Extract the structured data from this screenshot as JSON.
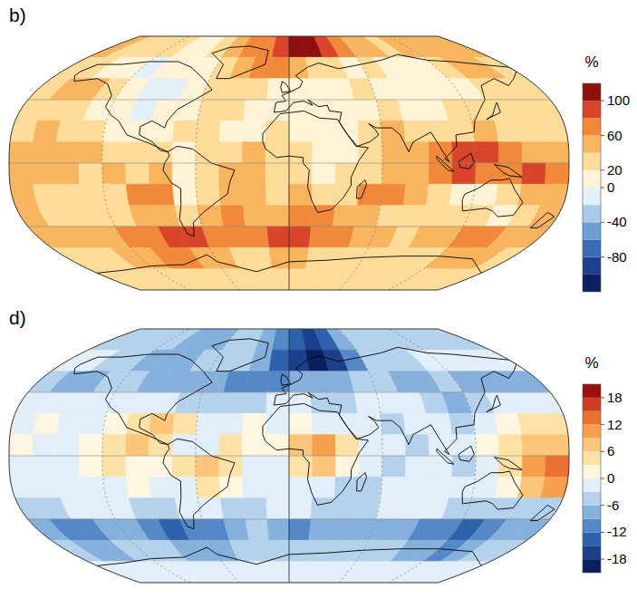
{
  "chart_data": [
    {
      "type": "heatmap",
      "title": "b)",
      "tick_labels": false,
      "grid": true,
      "xlim": [
        -180,
        180
      ],
      "ylim": [
        -90,
        90
      ],
      "xticks": [
        -120,
        -60,
        0,
        60,
        120
      ],
      "yticks": [
        -45,
        0,
        45
      ],
      "x": [
        -172.5,
        -157.5,
        -142.5,
        -127.5,
        -112.5,
        -97.5,
        -82.5,
        -67.5,
        -52.5,
        -37.5,
        -22.5,
        -7.5,
        7.5,
        22.5,
        37.5,
        52.5,
        67.5,
        82.5,
        97.5,
        112.5,
        127.5,
        142.5,
        157.5,
        172.5
      ],
      "y": [
        82.5,
        67.5,
        52.5,
        37.5,
        22.5,
        7.5,
        -7.5,
        -22.5,
        -37.5,
        -52.5,
        -67.5,
        -82.5
      ],
      "values": [
        [
          40,
          30,
          30,
          20,
          20,
          10,
          10,
          20,
          40,
          60,
          60,
          80,
          100,
          100,
          80,
          60,
          40,
          40,
          30,
          40,
          40,
          40,
          40,
          40
        ],
        [
          30,
          20,
          10,
          0,
          -10,
          0,
          10,
          0,
          20,
          40,
          60,
          60,
          40,
          20,
          20,
          10,
          20,
          10,
          10,
          0,
          20,
          40,
          40,
          30
        ],
        [
          30,
          40,
          40,
          20,
          0,
          -10,
          -10,
          0,
          20,
          30,
          20,
          10,
          0,
          10,
          10,
          20,
          10,
          0,
          10,
          0,
          10,
          20,
          30,
          30
        ],
        [
          20,
          30,
          20,
          10,
          0,
          -20,
          0,
          10,
          20,
          20,
          10,
          10,
          10,
          0,
          10,
          10,
          20,
          10,
          0,
          20,
          20,
          30,
          20,
          20
        ],
        [
          30,
          40,
          30,
          20,
          10,
          0,
          10,
          20,
          30,
          10,
          10,
          20,
          10,
          0,
          10,
          30,
          40,
          30,
          20,
          30,
          40,
          30,
          30,
          30
        ],
        [
          40,
          50,
          40,
          40,
          30,
          20,
          20,
          10,
          20,
          30,
          40,
          30,
          20,
          10,
          10,
          30,
          40,
          40,
          60,
          80,
          80,
          60,
          40,
          40
        ],
        [
          50,
          40,
          40,
          30,
          40,
          30,
          40,
          10,
          20,
          40,
          40,
          30,
          30,
          10,
          20,
          30,
          40,
          40,
          60,
          80,
          60,
          70,
          80,
          60
        ],
        [
          40,
          30,
          20,
          30,
          30,
          60,
          60,
          10,
          20,
          40,
          40,
          30,
          40,
          20,
          30,
          60,
          60,
          40,
          20,
          10,
          0,
          20,
          40,
          40
        ],
        [
          40,
          30,
          30,
          20,
          30,
          40,
          40,
          30,
          40,
          60,
          40,
          40,
          60,
          60,
          50,
          40,
          30,
          30,
          20,
          20,
          20,
          10,
          30,
          40
        ],
        [
          50,
          40,
          40,
          50,
          60,
          60,
          80,
          80,
          60,
          60,
          60,
          80,
          80,
          60,
          60,
          40,
          40,
          30,
          40,
          40,
          60,
          60,
          50,
          50
        ],
        [
          30,
          20,
          30,
          40,
          40,
          60,
          60,
          40,
          40,
          20,
          20,
          40,
          40,
          30,
          20,
          20,
          20,
          20,
          20,
          30,
          40,
          40,
          40,
          30
        ],
        [
          20,
          20,
          20,
          20,
          20,
          20,
          20,
          20,
          20,
          20,
          20,
          20,
          20,
          20,
          20,
          20,
          20,
          20,
          20,
          20,
          20,
          20,
          20,
          20
        ]
      ],
      "colorbar_label": "%",
      "colorbar_lim": [
        -120,
        120
      ],
      "colorbar_levels": [
        -120,
        -100,
        -80,
        -60,
        -40,
        -20,
        0,
        20,
        40,
        60,
        80,
        100,
        120
      ],
      "colorbar_colors": [
        "#0d1f5c",
        "#1f3f8f",
        "#3a6bb5",
        "#6b9fd4",
        "#a8cbe8",
        "#e4f0f8",
        "#fff3d6",
        "#fddc9a",
        "#f9b45f",
        "#f08a3a",
        "#d9452a",
        "#8f1010"
      ],
      "colorbar_ticks": [
        100,
        60,
        20,
        0,
        -40,
        -80
      ]
    },
    {
      "type": "heatmap",
      "title": "d)",
      "tick_labels": false,
      "grid": true,
      "xlim": [
        -180,
        180
      ],
      "ylim": [
        -90,
        90
      ],
      "xticks": [
        -120,
        -60,
        0,
        60,
        120
      ],
      "yticks": [
        -45,
        0,
        45
      ],
      "x": [
        -172.5,
        -157.5,
        -142.5,
        -127.5,
        -112.5,
        -97.5,
        -82.5,
        -67.5,
        -52.5,
        -37.5,
        -22.5,
        -7.5,
        7.5,
        22.5,
        37.5,
        52.5,
        67.5,
        82.5,
        97.5,
        112.5,
        127.5,
        142.5,
        157.5,
        172.5
      ],
      "y": [
        82.5,
        67.5,
        52.5,
        37.5,
        22.5,
        7.5,
        -7.5,
        -22.5,
        -37.5,
        -52.5,
        -67.5,
        -82.5
      ],
      "values": [
        [
          -6,
          -6,
          -6,
          -6,
          -6,
          -9,
          -9,
          -9,
          -6,
          -6,
          -9,
          -12,
          -15,
          -18,
          -15,
          -9,
          -6,
          -6,
          -6,
          -6,
          -6,
          -6,
          -6,
          -6
        ],
        [
          -3,
          -3,
          -6,
          -6,
          -9,
          -9,
          -9,
          -6,
          -6,
          -6,
          -9,
          -15,
          -18,
          -21,
          -18,
          -12,
          -6,
          -6,
          -6,
          -3,
          -3,
          -3,
          -3,
          -3
        ],
        [
          -6,
          -9,
          -9,
          -6,
          -6,
          -9,
          -9,
          -9,
          -9,
          -12,
          -12,
          -12,
          -9,
          -9,
          -9,
          -6,
          -6,
          -9,
          -9,
          -6,
          -9,
          -9,
          -9,
          -9
        ],
        [
          -3,
          -3,
          -3,
          -3,
          -3,
          -3,
          -3,
          -6,
          -6,
          -6,
          -6,
          -3,
          -3,
          -6,
          -6,
          -3,
          -3,
          -3,
          -6,
          -9,
          -6,
          -3,
          -3,
          -3
        ],
        [
          -3,
          0,
          -3,
          -3,
          0,
          3,
          6,
          3,
          -3,
          -3,
          0,
          -3,
          0,
          -3,
          -3,
          -3,
          -6,
          -3,
          -3,
          -6,
          -3,
          0,
          3,
          3
        ],
        [
          0,
          -3,
          -3,
          0,
          3,
          6,
          3,
          -3,
          -3,
          3,
          0,
          0,
          6,
          9,
          3,
          -3,
          -3,
          -6,
          -3,
          -3,
          0,
          3,
          6,
          6
        ],
        [
          -3,
          -3,
          -3,
          0,
          3,
          0,
          0,
          3,
          6,
          3,
          -3,
          -3,
          3,
          6,
          0,
          -3,
          -6,
          -3,
          -3,
          -6,
          -3,
          3,
          9,
          12
        ],
        [
          -3,
          -3,
          -3,
          -3,
          -3,
          0,
          -3,
          -3,
          3,
          0,
          -3,
          -3,
          -3,
          -3,
          -6,
          -6,
          -3,
          -3,
          -3,
          -3,
          -3,
          0,
          6,
          9
        ],
        [
          -6,
          -6,
          -3,
          -3,
          -3,
          -6,
          -6,
          -3,
          -3,
          -6,
          -6,
          -3,
          -3,
          -6,
          -6,
          -6,
          -3,
          -3,
          -3,
          -6,
          -6,
          -6,
          -6,
          -6
        ],
        [
          -9,
          -12,
          -12,
          -9,
          -9,
          -12,
          -15,
          -12,
          -12,
          -9,
          -6,
          -9,
          -12,
          -9,
          -9,
          -9,
          -9,
          -9,
          -12,
          -12,
          -15,
          -12,
          -9,
          -9
        ],
        [
          -6,
          -9,
          -9,
          -6,
          -6,
          -6,
          -9,
          -9,
          -9,
          -6,
          -6,
          -6,
          -6,
          -6,
          -6,
          -6,
          -6,
          -6,
          -9,
          -9,
          -12,
          -9,
          -6,
          -6
        ],
        [
          -3,
          -3,
          -3,
          -3,
          -3,
          -3,
          -3,
          -3,
          -3,
          -3,
          -3,
          -3,
          -3,
          -3,
          -3,
          -3,
          -3,
          -3,
          -3,
          -3,
          -3,
          -3,
          -3,
          -3
        ]
      ],
      "colorbar_label": "%",
      "colorbar_lim": [
        -21,
        21
      ],
      "colorbar_levels": [
        -21,
        -18,
        -15,
        -12,
        -9,
        -6,
        -3,
        0,
        3,
        6,
        9,
        12,
        15,
        18,
        21
      ],
      "colorbar_colors": [
        "#0a1f5c",
        "#1c3f8c",
        "#2f62ad",
        "#5588c6",
        "#86b1dc",
        "#b5d2ec",
        "#e2eef8",
        "#fff6e0",
        "#fde2a8",
        "#fbc57a",
        "#f6a04e",
        "#ea7133",
        "#d23c22",
        "#9a0f0f"
      ],
      "colorbar_ticks": [
        18,
        12,
        6,
        0,
        -6,
        -12,
        -18
      ]
    }
  ]
}
